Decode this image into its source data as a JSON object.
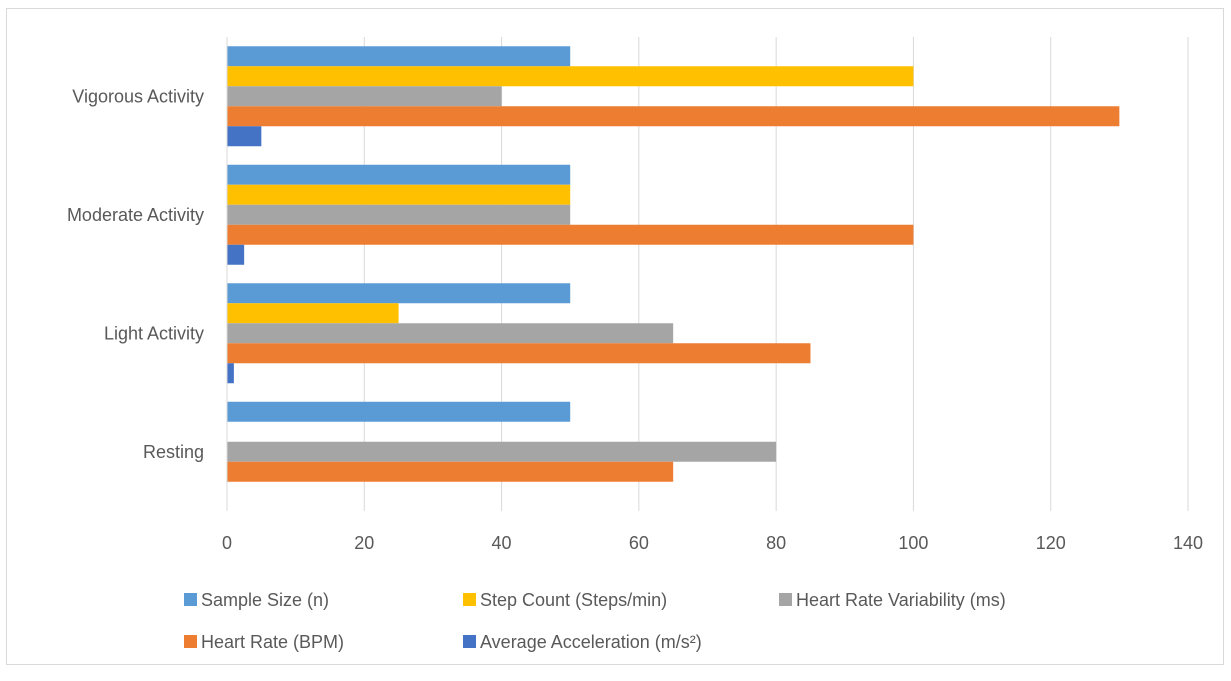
{
  "chart_data": {
    "type": "bar",
    "orientation": "horizontal",
    "categories": [
      "Resting",
      "Light Activity",
      "Moderate Activity",
      "Vigorous Activity"
    ],
    "series": [
      {
        "name": "Sample Size (n)",
        "color": "#5b9bd5",
        "values": [
          50,
          50,
          50,
          50
        ]
      },
      {
        "name": "Step Count (Steps/min)",
        "color": "#ffc000",
        "values": [
          0,
          25,
          50,
          100
        ]
      },
      {
        "name": "Heart Rate Variability (ms)",
        "color": "#a5a5a5",
        "values": [
          80,
          65,
          50,
          40
        ]
      },
      {
        "name": "Heart Rate (BPM)",
        "color": "#ed7d31",
        "values": [
          65,
          85,
          100,
          130
        ]
      },
      {
        "name": "Average Acceleration (m/s²)",
        "color": "#4472c4",
        "values": [
          0,
          1,
          2.5,
          5
        ]
      }
    ],
    "xlim": [
      0,
      140
    ],
    "xticks": [
      0,
      20,
      40,
      60,
      80,
      100,
      120,
      140
    ],
    "grid": true,
    "legend_position": "bottom"
  }
}
